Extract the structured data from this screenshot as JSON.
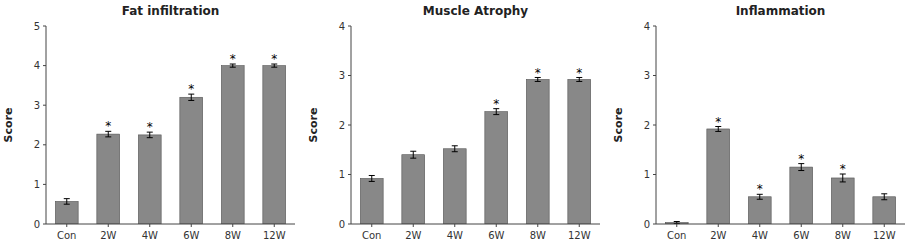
{
  "chart_data": [
    {
      "type": "bar",
      "title": "Fat infiltration",
      "ylabel": "Score",
      "categories": [
        "Con",
        "2W",
        "4W",
        "6W",
        "8W",
        "12W"
      ],
      "values": [
        0.57,
        2.27,
        2.25,
        3.2,
        4.0,
        4.0
      ],
      "errors": [
        0.07,
        0.07,
        0.07,
        0.08,
        0.04,
        0.04
      ],
      "annotations": [
        null,
        "*",
        "*",
        "*",
        "*",
        "*"
      ],
      "color": "#888888",
      "ylim": [
        0,
        5
      ],
      "yticks": [
        0,
        1,
        2,
        3,
        4,
        5
      ],
      "grid": false
    },
    {
      "type": "bar",
      "title": "Muscle Atrophy",
      "ylabel": "Score",
      "categories": [
        "Con",
        "2W",
        "4W",
        "6W",
        "8W",
        "12W"
      ],
      "values": [
        0.92,
        1.4,
        1.52,
        2.27,
        2.92,
        2.92
      ],
      "errors": [
        0.06,
        0.07,
        0.06,
        0.06,
        0.04,
        0.04
      ],
      "annotations": [
        null,
        null,
        null,
        "*",
        "*",
        "*"
      ],
      "color": "#888888",
      "ylim": [
        0,
        4
      ],
      "yticks": [
        0,
        1,
        2,
        3,
        4
      ],
      "grid": false
    },
    {
      "type": "bar",
      "title": "Inflammation",
      "ylabel": "Score",
      "categories": [
        "Con",
        "2W",
        "4W",
        "6W",
        "8W",
        "12W"
      ],
      "values": [
        0.03,
        1.92,
        0.55,
        1.15,
        0.93,
        0.55
      ],
      "errors": [
        0.02,
        0.05,
        0.05,
        0.07,
        0.08,
        0.06
      ],
      "annotations": [
        null,
        "*",
        "*",
        "*",
        "*",
        null
      ],
      "color": "#888888",
      "ylim": [
        0,
        4
      ],
      "yticks": [
        0,
        1,
        2,
        3,
        4
      ],
      "grid": false
    }
  ]
}
